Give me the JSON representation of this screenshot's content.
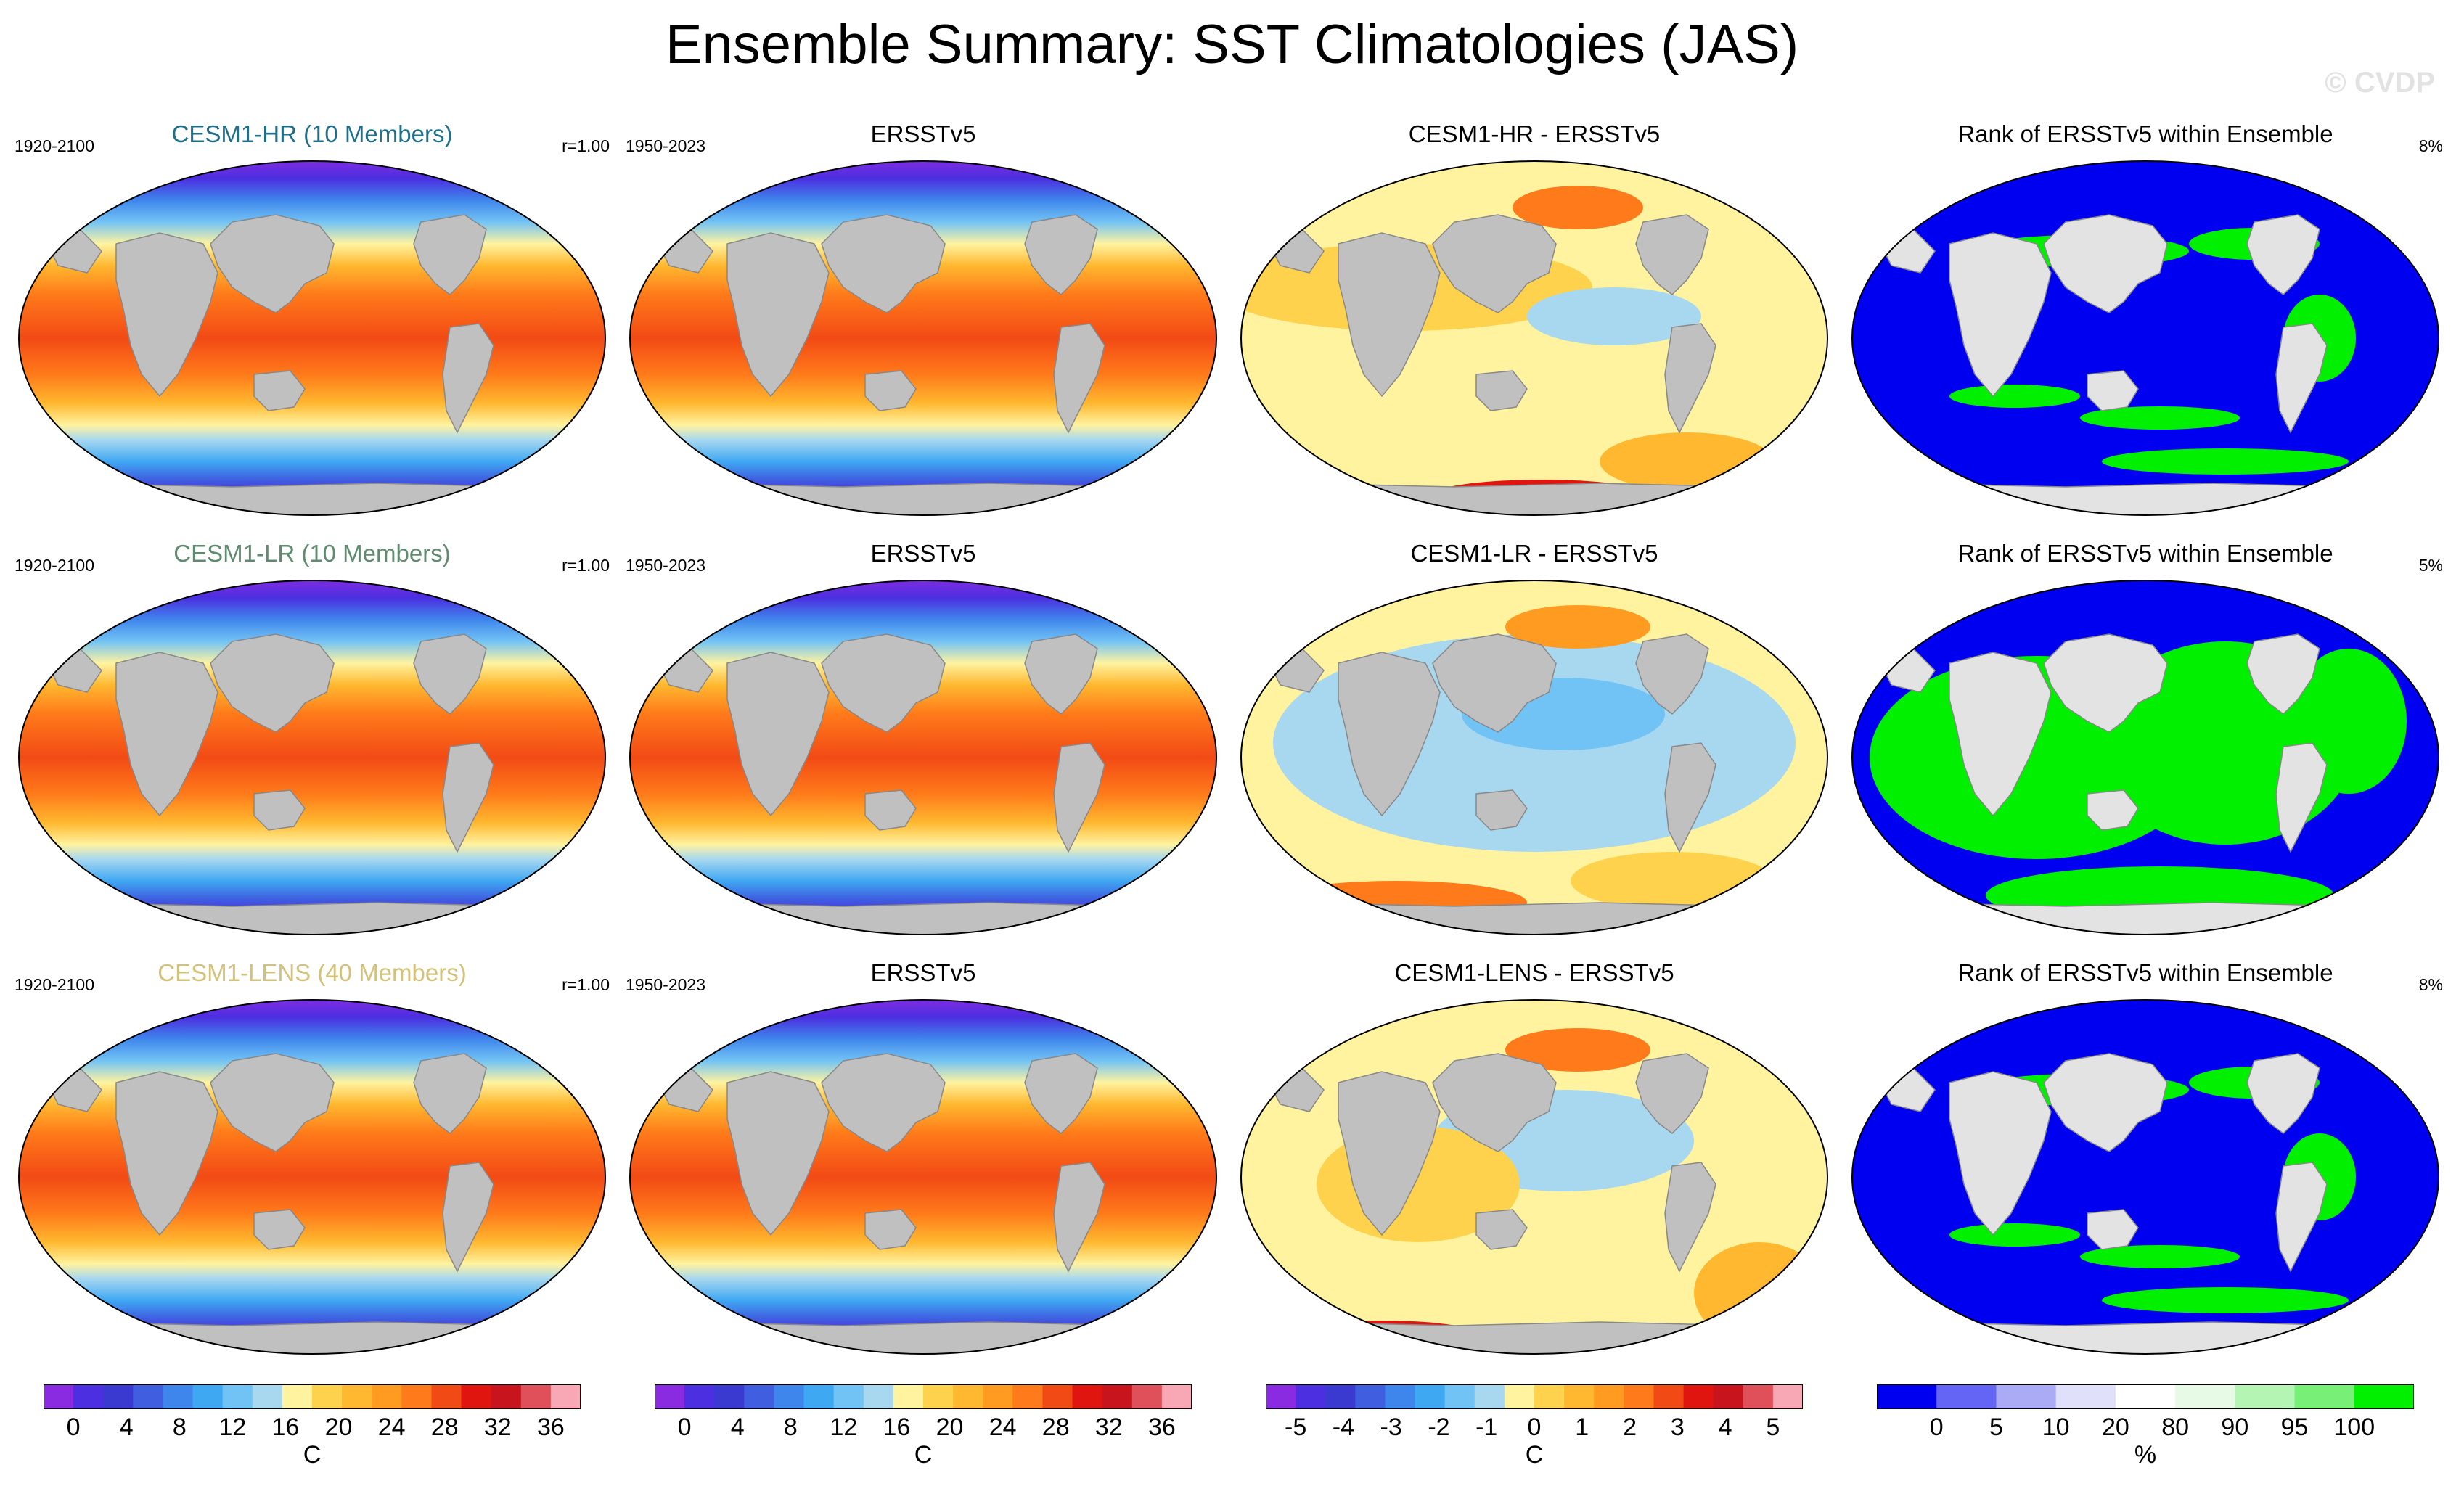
{
  "title": "Ensemble Summary: SST Climatologies (JAS)",
  "watermark": "© CVDP",
  "rows": [
    {
      "model": {
        "title": "CESM1-HR (10 Members)",
        "title_color": "#1f6f8b",
        "period": "1920-2100",
        "r": "r=1.00"
      },
      "obs": {
        "title": "ERSSTv5",
        "period": "1950-2023"
      },
      "diff": {
        "title": "CESM1-HR - ERSSTv5",
        "bias": "warm"
      },
      "rank": {
        "title": "Rank of ERSSTv5 within Ensemble",
        "pct": "8%",
        "green_fraction": "low"
      }
    },
    {
      "model": {
        "title": "CESM1-LR (10 Members)",
        "title_color": "#5f8b6f",
        "period": "1920-2100",
        "r": "r=1.00"
      },
      "obs": {
        "title": "ERSSTv5",
        "period": "1950-2023"
      },
      "diff": {
        "title": "CESM1-LR - ERSSTv5",
        "bias": "cool"
      },
      "rank": {
        "title": "Rank of ERSSTv5 within Ensemble",
        "pct": "5%",
        "green_fraction": "high"
      }
    },
    {
      "model": {
        "title": "CESM1-LENS (40 Members)",
        "title_color": "#d4c27a",
        "period": "1920-2100",
        "r": "r=1.00"
      },
      "obs": {
        "title": "ERSSTv5",
        "period": "1950-2023"
      },
      "diff": {
        "title": "CESM1-LENS - ERSSTv5",
        "bias": "mixed"
      },
      "rank": {
        "title": "Rank of ERSSTv5 within Ensemble",
        "pct": "8%",
        "green_fraction": "low"
      }
    }
  ],
  "colorbars": {
    "sst": {
      "colors": [
        "#8a2be2",
        "#4b2fe0",
        "#3a3ad0",
        "#3f5fe0",
        "#3f86ec",
        "#3fa8f2",
        "#72c3f5",
        "#a8d8f0",
        "#fff3a0",
        "#ffd24d",
        "#ffb830",
        "#ff9b20",
        "#ff7a1a",
        "#f24a15",
        "#e0150f",
        "#c8141c",
        "#e0505a",
        "#f8a8b4"
      ],
      "ticks": [
        "0",
        "4",
        "8",
        "12",
        "16",
        "20",
        "24",
        "28",
        "32",
        "36"
      ],
      "unit": "C"
    },
    "diff": {
      "colors": [
        "#8a2be2",
        "#4b2fe0",
        "#3a3ad0",
        "#3f5fe0",
        "#3f86ec",
        "#3fa8f2",
        "#72c3f5",
        "#a8d8f0",
        "#fff3a0",
        "#ffd24d",
        "#ffb830",
        "#ff9b20",
        "#ff7a1a",
        "#f24a15",
        "#e0150f",
        "#c8141c",
        "#e0505a",
        "#f8a8b4"
      ],
      "ticks": [
        "-5",
        "-4",
        "-3",
        "-2",
        "-1",
        "0",
        "1",
        "2",
        "3",
        "4",
        "5"
      ],
      "unit": "C"
    },
    "rank": {
      "colors": [
        "#0000f0",
        "#6464f5",
        "#aaaaf5",
        "#e0e0fa",
        "#ffffff",
        "#e6fae6",
        "#b4f5b4",
        "#78f078",
        "#00f000"
      ],
      "ticks": [
        "0",
        "5",
        "10",
        "20",
        "80",
        "90",
        "95",
        "100"
      ],
      "unit": "%"
    }
  },
  "colors": {
    "land": "#c0c0c0",
    "land_rank": "#e3e3e3",
    "ocean_rank": "#0000f0",
    "rank_green": "#00f000"
  }
}
